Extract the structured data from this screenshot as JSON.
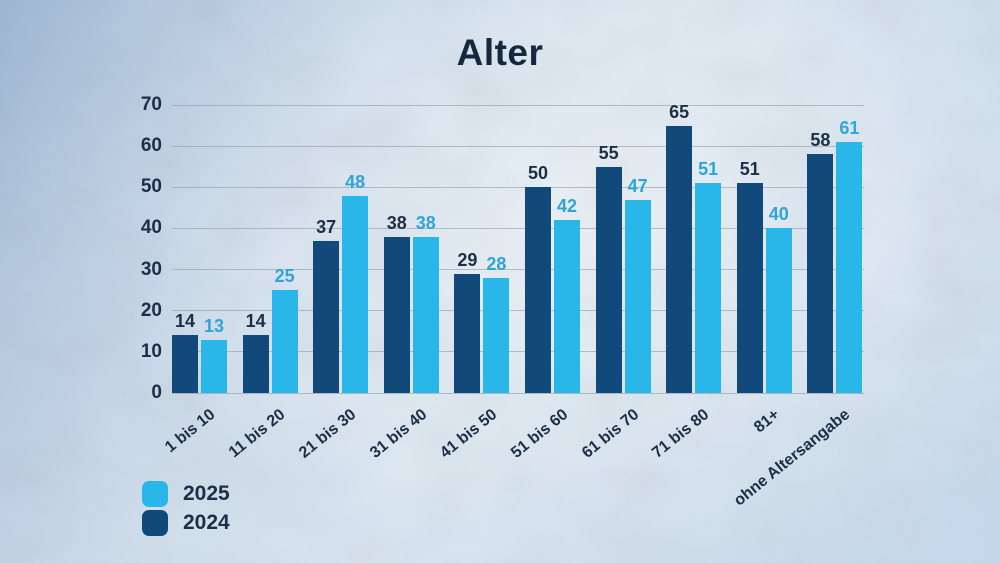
{
  "title": "Alter",
  "chart_data": {
    "type": "bar",
    "title": "Alter",
    "categories": [
      "1 bis 10",
      "11 bis 20",
      "21 bis 30",
      "31 bis 40",
      "41 bis 50",
      "51 bis 60",
      "61 bis 70",
      "71 bis 80",
      "81+",
      "ohne Altersangabe"
    ],
    "series": [
      {
        "name": "2024",
        "color": "#11497b",
        "label_color": "#1c2f47",
        "values": [
          14,
          14,
          37,
          38,
          29,
          50,
          55,
          65,
          51,
          58
        ]
      },
      {
        "name": "2025",
        "color": "#29b7ea",
        "label_color": "#2ea4d9",
        "values": [
          13,
          25,
          48,
          38,
          28,
          42,
          47,
          51,
          40,
          61
        ]
      }
    ],
    "ylim": [
      0,
      70
    ],
    "yticks": [
      0,
      10,
      20,
      30,
      40,
      50,
      60,
      70
    ],
    "grid": true,
    "xlabel": "",
    "ylabel": "",
    "xtick_rotation_deg": -39,
    "legend_position": "bottom-left"
  },
  "legend": {
    "items": [
      {
        "label": "2025",
        "color": "#29b7ea"
      },
      {
        "label": "2024",
        "color": "#11497b"
      }
    ]
  },
  "colors": {
    "text_dark": "#1c2f47",
    "gridline": "#8a949e",
    "background_top_left": "#9fb9d6",
    "background_light": "#dde9f3",
    "bar_2024": "#11497b",
    "bar_2025": "#29b7ea"
  }
}
